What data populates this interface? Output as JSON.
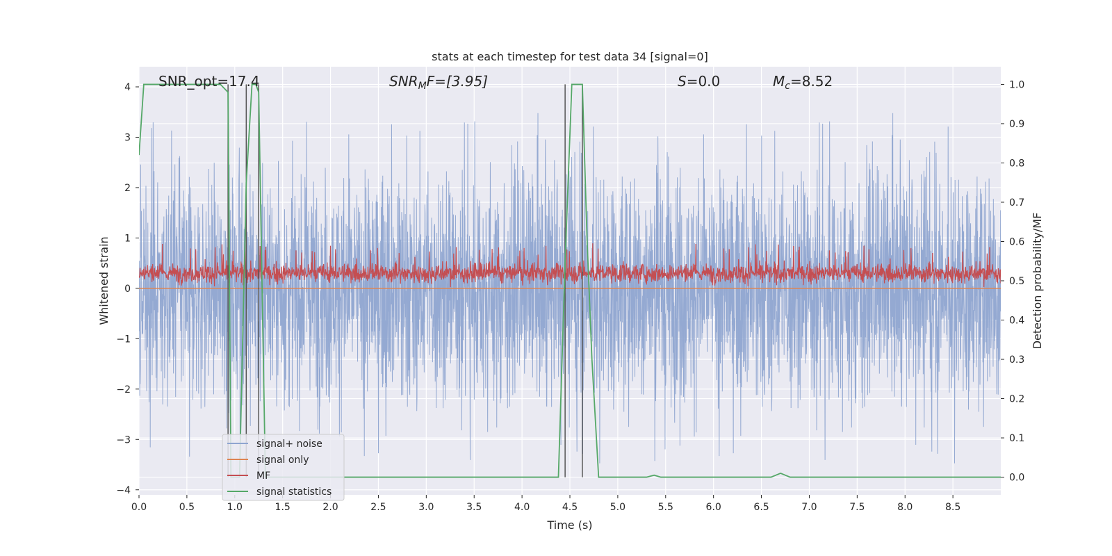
{
  "chart_data": {
    "type": "line",
    "title": "stats at each timestep for test data 34 [signal=0]",
    "xlabel": "Time (s)",
    "ylabel": "Whitened strain",
    "y2label": "Detection probability/MF",
    "xlim": [
      0,
      9.0
    ],
    "ylim": [
      -4.1,
      4.4
    ],
    "y2lim": [
      -0.045,
      1.045
    ],
    "xticks": [
      "0.0",
      "0.5",
      "1.0",
      "1.5",
      "2.0",
      "2.5",
      "3.0",
      "3.5",
      "4.0",
      "4.5",
      "5.0",
      "5.5",
      "6.0",
      "6.5",
      "7.0",
      "7.5",
      "8.0",
      "8.5"
    ],
    "yticks": [
      "−4",
      "−3",
      "−2",
      "−1",
      "0",
      "1",
      "2",
      "3",
      "4"
    ],
    "y2ticks": [
      "0.0",
      "0.1",
      "0.2",
      "0.3",
      "0.4",
      "0.5",
      "0.6",
      "0.7",
      "0.8",
      "0.9",
      "1.0"
    ],
    "grid": true,
    "legend": {
      "placement": "lower-left",
      "entries": [
        "signal+ noise",
        "signal only",
        "MF",
        "signal statistics"
      ]
    },
    "annotations": {
      "snr_opt": "SNR_opt=17.4",
      "snr_mf_base": "SNR",
      "snr_mf_sub": "M",
      "snr_mf_rest": "F=[3.95]",
      "s_base": "S",
      "s_rest": "=0.0",
      "mc_base": "M",
      "mc_sub": "c",
      "mc_rest": "=8.52"
    },
    "series": [
      {
        "name": "signal+ noise",
        "axis": "left",
        "color": "#8fa5d0",
        "description": "noise envelope approx ±1.7 typical, peaks to about ±3.6",
        "typical_amplitude": 1.7,
        "peak_amplitude": 3.6
      },
      {
        "name": "signal only",
        "axis": "left",
        "color": "#dd8452",
        "values_constant": 0.0
      },
      {
        "name": "MF",
        "axis": "left",
        "color": "#c44e52",
        "baseline": 0.3,
        "min": 0.0,
        "max": 0.9
      },
      {
        "name": "signal statistics",
        "axis": "right",
        "color": "#55a868",
        "x": [
          0.0,
          0.05,
          0.1,
          0.2,
          0.5,
          0.85,
          0.93,
          0.96,
          1.05,
          1.12,
          1.18,
          1.22,
          1.25,
          1.32,
          1.5,
          4.0,
          4.38,
          4.45,
          4.52,
          4.6,
          4.63,
          4.68,
          4.73,
          4.8,
          5.3,
          5.38,
          5.45,
          6.6,
          6.7,
          6.8,
          7.0,
          9.0
        ],
        "y": [
          0.82,
          1.0,
          1.0,
          1.0,
          1.0,
          1.0,
          0.98,
          0.0,
          0.0,
          0.75,
          1.0,
          1.0,
          0.98,
          0.0,
          0.0,
          0.0,
          0.0,
          0.55,
          1.0,
          1.0,
          1.0,
          0.6,
          0.3,
          0.0,
          0.0,
          0.005,
          0.0,
          0.0,
          0.01,
          0.0,
          0.0,
          0.0
        ]
      }
    ],
    "vertical_markers": {
      "color": "#555555",
      "x": [
        0.93,
        1.12,
        1.25,
        4.45,
        4.63
      ]
    }
  }
}
